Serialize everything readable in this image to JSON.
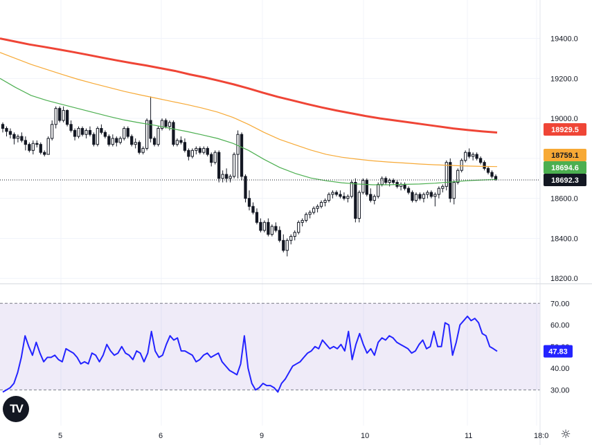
{
  "chart_data": [
    {
      "type": "candlestick",
      "panel": "price",
      "y_ticks": [
        "19400.0",
        "19200.0",
        "19000.0",
        "18800.0",
        "18600.0",
        "18400.0",
        "18200.0"
      ],
      "ylim": [
        18180,
        19440
      ],
      "x_ticks": [
        "5",
        "6",
        "9",
        "10",
        "11",
        "18:0"
      ],
      "candles": [
        [
          18970,
          18980,
          18930,
          18950
        ],
        [
          18950,
          18960,
          18910,
          18935
        ],
        [
          18935,
          18950,
          18900,
          18920
        ],
        [
          18920,
          18930,
          18870,
          18900
        ],
        [
          18900,
          18920,
          18880,
          18910
        ],
        [
          18910,
          18930,
          18880,
          18890
        ],
        [
          18890,
          18910,
          18840,
          18870
        ],
        [
          18870,
          18880,
          18830,
          18840
        ],
        [
          18840,
          18890,
          18820,
          18875
        ],
        [
          18875,
          18890,
          18855,
          18870
        ],
        [
          18870,
          18880,
          18820,
          18830
        ],
        [
          18830,
          18840,
          18810,
          18820
        ],
        [
          18820,
          18910,
          18820,
          18900
        ],
        [
          18900,
          18990,
          18890,
          18970
        ],
        [
          18970,
          19060,
          18950,
          19050
        ],
        [
          19050,
          19060,
          18980,
          18990
        ],
        [
          18990,
          19060,
          18980,
          19040
        ],
        [
          19040,
          19045,
          18960,
          18970
        ],
        [
          18970,
          18990,
          18930,
          18940
        ],
        [
          18940,
          18950,
          18890,
          18910
        ],
        [
          18910,
          18960,
          18900,
          18950
        ],
        [
          18950,
          18960,
          18910,
          18920
        ],
        [
          18920,
          18950,
          18900,
          18940
        ],
        [
          18940,
          18960,
          18910,
          18920
        ],
        [
          18920,
          18930,
          18860,
          18870
        ],
        [
          18870,
          18960,
          18860,
          18950
        ],
        [
          18950,
          18970,
          18920,
          18930
        ],
        [
          18930,
          18940,
          18900,
          18910
        ],
        [
          18910,
          18920,
          18860,
          18870
        ],
        [
          18870,
          18920,
          18860,
          18900
        ],
        [
          18900,
          18910,
          18860,
          18880
        ],
        [
          18880,
          18910,
          18870,
          18900
        ],
        [
          18900,
          18960,
          18890,
          18950
        ],
        [
          18950,
          18960,
          18900,
          18910
        ],
        [
          18910,
          18920,
          18860,
          18870
        ],
        [
          18870,
          18900,
          18850,
          18880
        ],
        [
          18880,
          18890,
          18820,
          18830
        ],
        [
          18830,
          18860,
          18820,
          18850
        ],
        [
          18850,
          19000,
          18840,
          18990
        ],
        [
          18990,
          19110,
          18880,
          18900
        ],
        [
          18900,
          18910,
          18860,
          18870
        ],
        [
          18870,
          18960,
          18860,
          18950
        ],
        [
          18950,
          19000,
          18940,
          18990
        ],
        [
          18990,
          19000,
          18950,
          18960
        ],
        [
          18960,
          18990,
          18940,
          18980
        ],
        [
          18980,
          18990,
          18860,
          18870
        ],
        [
          18870,
          18900,
          18860,
          18890
        ],
        [
          18890,
          18910,
          18870,
          18880
        ],
        [
          18880,
          18900,
          18830,
          18840
        ],
        [
          18840,
          18850,
          18790,
          18810
        ],
        [
          18810,
          18850,
          18800,
          18840
        ],
        [
          18840,
          18860,
          18820,
          18850
        ],
        [
          18850,
          18860,
          18820,
          18830
        ],
        [
          18830,
          18860,
          18820,
          18850
        ],
        [
          18850,
          18860,
          18810,
          18820
        ],
        [
          18820,
          18830,
          18760,
          18780
        ],
        [
          18780,
          18840,
          18770,
          18830
        ],
        [
          18830,
          18840,
          18680,
          18700
        ],
        [
          18700,
          18740,
          18680,
          18720
        ],
        [
          18720,
          18750,
          18680,
          18700
        ],
        [
          18700,
          18720,
          18680,
          18710
        ],
        [
          18710,
          18830,
          18700,
          18820
        ],
        [
          18820,
          18940,
          18700,
          18920
        ],
        [
          18920,
          18930,
          18690,
          18710
        ],
        [
          18710,
          18720,
          18580,
          18600
        ],
        [
          18600,
          18640,
          18540,
          18560
        ],
        [
          18560,
          18580,
          18520,
          18530
        ],
        [
          18530,
          18550,
          18470,
          18480
        ],
        [
          18480,
          18500,
          18430,
          18440
        ],
        [
          18440,
          18490,
          18430,
          18480
        ],
        [
          18480,
          18500,
          18410,
          18420
        ],
        [
          18420,
          18470,
          18410,
          18460
        ],
        [
          18460,
          18480,
          18430,
          18440
        ],
        [
          18440,
          18460,
          18380,
          18390
        ],
        [
          18390,
          18420,
          18330,
          18340
        ],
        [
          18340,
          18400,
          18310,
          18390
        ],
        [
          18390,
          18420,
          18370,
          18410
        ],
        [
          18410,
          18440,
          18390,
          18430
        ],
        [
          18430,
          18490,
          18420,
          18480
        ],
        [
          18480,
          18500,
          18460,
          18490
        ],
        [
          18490,
          18530,
          18480,
          18520
        ],
        [
          18520,
          18540,
          18500,
          18530
        ],
        [
          18530,
          18560,
          18520,
          18550
        ],
        [
          18550,
          18570,
          18530,
          18560
        ],
        [
          18560,
          18590,
          18550,
          18580
        ],
        [
          18580,
          18600,
          18560,
          18590
        ],
        [
          18590,
          18630,
          18580,
          18620
        ],
        [
          18620,
          18640,
          18600,
          18630
        ],
        [
          18630,
          18640,
          18610,
          18620
        ],
        [
          18620,
          18640,
          18600,
          18610
        ],
        [
          18610,
          18630,
          18590,
          18600
        ],
        [
          18600,
          18620,
          18580,
          18610
        ],
        [
          18610,
          18690,
          18600,
          18680
        ],
        [
          18680,
          18700,
          18480,
          18500
        ],
        [
          18500,
          18640,
          18480,
          18630
        ],
        [
          18630,
          18700,
          18620,
          18690
        ],
        [
          18690,
          18700,
          18610,
          18620
        ],
        [
          18620,
          18650,
          18580,
          18590
        ],
        [
          18590,
          18620,
          18570,
          18610
        ],
        [
          18610,
          18680,
          18600,
          18670
        ],
        [
          18670,
          18710,
          18660,
          18700
        ],
        [
          18700,
          18710,
          18670,
          18680
        ],
        [
          18680,
          18700,
          18660,
          18690
        ],
        [
          18690,
          18700,
          18670,
          18680
        ],
        [
          18680,
          18690,
          18650,
          18660
        ],
        [
          18660,
          18680,
          18640,
          18670
        ],
        [
          18670,
          18680,
          18640,
          18650
        ],
        [
          18650,
          18660,
          18620,
          18630
        ],
        [
          18630,
          18640,
          18580,
          18590
        ],
        [
          18590,
          18630,
          18580,
          18620
        ],
        [
          18620,
          18630,
          18590,
          18600
        ],
        [
          18600,
          18630,
          18580,
          18620
        ],
        [
          18620,
          18640,
          18600,
          18630
        ],
        [
          18630,
          18640,
          18600,
          18610
        ],
        [
          18610,
          18630,
          18560,
          18620
        ],
        [
          18620,
          18660,
          18600,
          18650
        ],
        [
          18650,
          18670,
          18630,
          18660
        ],
        [
          18660,
          18790,
          18640,
          18780
        ],
        [
          18780,
          18800,
          18580,
          18600
        ],
        [
          18600,
          18690,
          18570,
          18680
        ],
        [
          18680,
          18750,
          18670,
          18740
        ],
        [
          18740,
          18800,
          18730,
          18790
        ],
        [
          18790,
          18840,
          18780,
          18830
        ],
        [
          18830,
          18850,
          18800,
          18810
        ],
        [
          18810,
          18830,
          18790,
          18820
        ],
        [
          18820,
          18830,
          18790,
          18800
        ],
        [
          18800,
          18810,
          18770,
          18780
        ],
        [
          18780,
          18790,
          18740,
          18750
        ],
        [
          18750,
          18760,
          18720,
          18730
        ],
        [
          18730,
          18740,
          18700,
          18710
        ],
        [
          18710,
          18720,
          18690,
          18692.3
        ]
      ],
      "moving_averages": [
        {
          "color": "#ef4536",
          "last": 18929.5,
          "values": [
            19400,
            19385,
            19370,
            19358,
            19345,
            19332,
            19318,
            19304,
            19290,
            19277,
            19265,
            19251,
            19237,
            19220,
            19205,
            19188,
            19170,
            19150,
            19128,
            19108,
            19090,
            19072,
            19055,
            19040,
            19026,
            19012,
            19000,
            18990,
            18980,
            18970,
            18960,
            18950,
            18942,
            18935,
            18929.5
          ]
        },
        {
          "color": "#f7a935",
          "last": 18759.1,
          "values": [
            19330,
            19300,
            19270,
            19245,
            19220,
            19196,
            19175,
            19155,
            19135,
            19118,
            19102,
            19086,
            19070,
            19052,
            19032,
            19005,
            18970,
            18930,
            18895,
            18868,
            18842,
            18820,
            18806,
            18796,
            18788,
            18782,
            18777,
            18772,
            18768,
            18765,
            18762,
            18760,
            18759.1
          ]
        },
        {
          "color": "#4caf50",
          "last": 18694.6,
          "values": [
            19200,
            19155,
            19115,
            19090,
            19070,
            19050,
            19030,
            19010,
            18992,
            18978,
            18965,
            18950,
            18935,
            18918,
            18900,
            18875,
            18840,
            18795,
            18755,
            18725,
            18702,
            18688,
            18678,
            18672,
            18668,
            18668,
            18670,
            18672,
            18676,
            18682,
            18688,
            18692,
            18694.6
          ]
        }
      ],
      "last_price": 18692.3,
      "badges": [
        {
          "label": "18929.5",
          "bg": "#ef4536",
          "fg": "#ffffff"
        },
        {
          "label": "18759.1",
          "bg": "#f7a935",
          "fg": "#131722"
        },
        {
          "label": "18694.6",
          "bg": "#4caf50",
          "fg": "#ffffff"
        },
        {
          "label": "18692.3",
          "bg": "#131722",
          "fg": "#ffffff"
        }
      ]
    },
    {
      "type": "line",
      "panel": "rsi",
      "y_ticks": [
        "70.00",
        "60.00",
        "50.00",
        "40.00",
        "30.00"
      ],
      "ylim": [
        25,
        72
      ],
      "overbought": 70,
      "oversold": 30,
      "color": "#2323ff",
      "band_color": "#7e57c2",
      "last": 47.83,
      "last_label": "47.83",
      "values": [
        29,
        30,
        31,
        33,
        38,
        45,
        55,
        50,
        46,
        52,
        47,
        43,
        45,
        45,
        46,
        44,
        43,
        49,
        48,
        47,
        45,
        42,
        43,
        42,
        47,
        46,
        43,
        46,
        51,
        48,
        46,
        47,
        50,
        47,
        46,
        44,
        48,
        47,
        43,
        47,
        57,
        48,
        45,
        46,
        51,
        55,
        53,
        54,
        48,
        48,
        47,
        46,
        43,
        44,
        46,
        47,
        45,
        46,
        47,
        43,
        41,
        39,
        38,
        37,
        42,
        55,
        40,
        33,
        30,
        31,
        33,
        32,
        32,
        31,
        29,
        33,
        35,
        38,
        41,
        42,
        43,
        45,
        47,
        48,
        50,
        49,
        53,
        51,
        49,
        50,
        49,
        51,
        48,
        57,
        44,
        51,
        56,
        51,
        47,
        49,
        46,
        52,
        54,
        53,
        55,
        54,
        52,
        51,
        50,
        49,
        47,
        48,
        51,
        53,
        49,
        50,
        57,
        50,
        50,
        61,
        60,
        46,
        52,
        60,
        62,
        64,
        62,
        63,
        61,
        56,
        55,
        50,
        49,
        47.83
      ]
    }
  ],
  "watermark_label": "TV"
}
